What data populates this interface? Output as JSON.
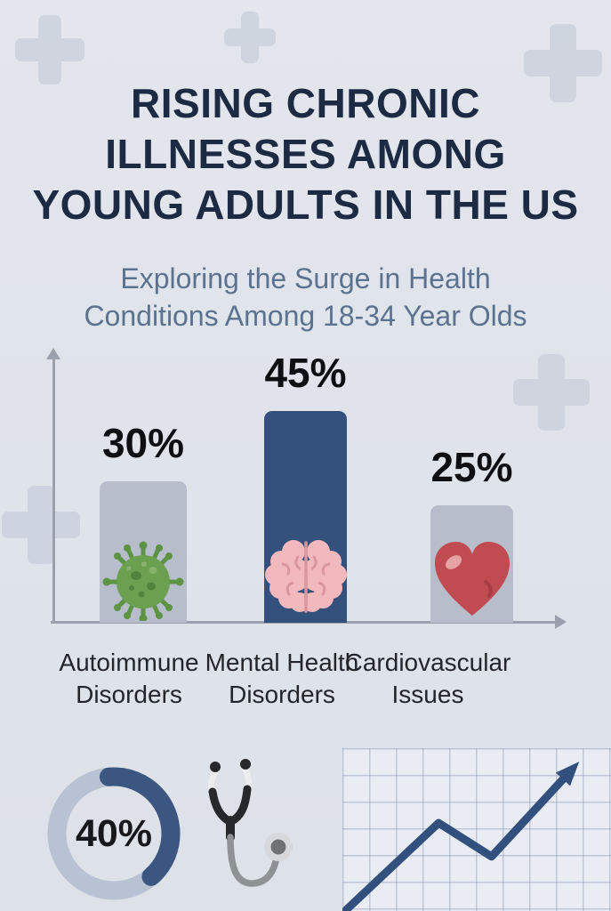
{
  "header": {
    "title": "RISING CHRONIC ILLNESSES AMONG YOUNG ADULTS IN THE US",
    "title_lines": [
      "RISING CHRONIC",
      "ILLNESSES AMONG",
      "YOUNG ADULTS IN THE US"
    ],
    "subtitle": "Exploring the Surge in Health Conditions Among 18-34 Year Olds",
    "subtitle_lines": [
      "Exploring the Surge in Health",
      "Conditions Among 18-34 Year Olds"
    ]
  },
  "chart_data": [
    {
      "type": "bar",
      "title": "",
      "categories": [
        "Autoimmune Disorders",
        "Mental Health Disorders",
        "Cardiovascular Issues"
      ],
      "values": [
        30,
        45,
        25
      ],
      "value_labels": [
        "30%",
        "45%",
        "25%"
      ],
      "unit": "percent",
      "ylim": [
        0,
        50
      ],
      "bar_colors": [
        "#b7bdcb",
        "#34507c",
        "#b7bdcb"
      ],
      "icons": [
        "virus-icon",
        "brain-icon",
        "heart-icon"
      ],
      "axes": {
        "y_axis_arrow": true,
        "x_axis_arrow": true,
        "tick_labels": false
      },
      "legend": "none"
    },
    {
      "type": "pie",
      "subtype": "donut",
      "values": [
        40,
        60
      ],
      "labels": [
        "highlighted share",
        "remainder"
      ],
      "center_label": "40%",
      "colors": [
        "#3a5681",
        "#b9c2d3"
      ],
      "start_angle_deg": -5
    },
    {
      "type": "line",
      "description": "upward zigzag trend line with arrowhead on graph paper grid",
      "x": [
        0,
        0.42,
        0.66,
        1.0
      ],
      "y": [
        0,
        0.57,
        0.35,
        0.88
      ],
      "color": "#31507e",
      "grid": true
    }
  ],
  "icons": {
    "decorative_background": "plus-icon",
    "bar_1": "virus-icon",
    "bar_2": "brain-icon",
    "bar_3": "heart-icon",
    "bottom_center": "stethoscope-icon"
  },
  "colors": {
    "background": "#e0e4ea",
    "title_text": "#1d2a44",
    "subtitle_text": "#5b7291",
    "axis": "#9aa1ad",
    "plus_cross": "#cbd1dd",
    "highlight_bar": "#34507c",
    "neutral_bar": "#b7bdcb",
    "virus_green": "#6aa050",
    "brain_pink": "#f2b9bd",
    "heart_red": "#c04b50",
    "trend_navy": "#31507e"
  }
}
